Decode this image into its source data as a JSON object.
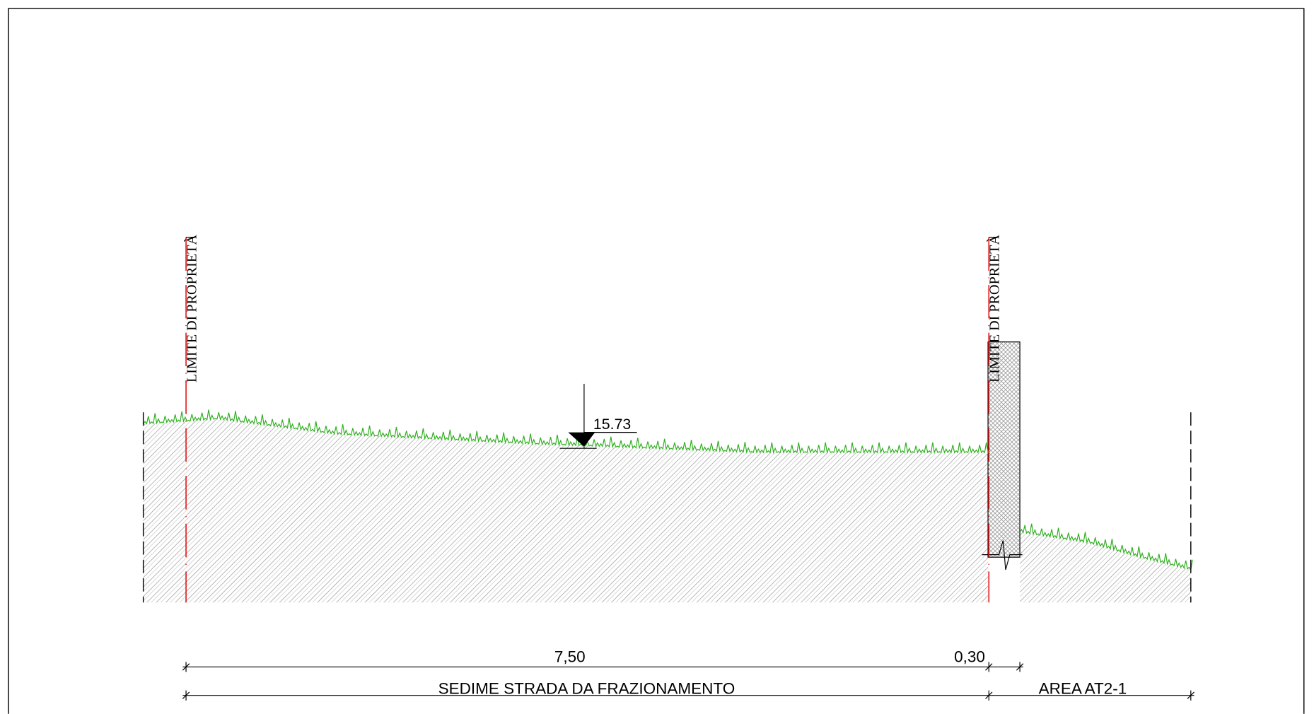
{
  "section": {
    "property_limit_left": "LIMITE DI PROPRIETÀ",
    "property_limit_right": "LIMITE DI PROPRIETÀ",
    "level_mark": "15.73",
    "dimensions": {
      "road_width": "7,50",
      "wall_width": "0,30"
    },
    "zones": {
      "road": "SEDIME STRADA DA FRAZIONAMENTO",
      "area": "AREA AT2-1"
    }
  }
}
